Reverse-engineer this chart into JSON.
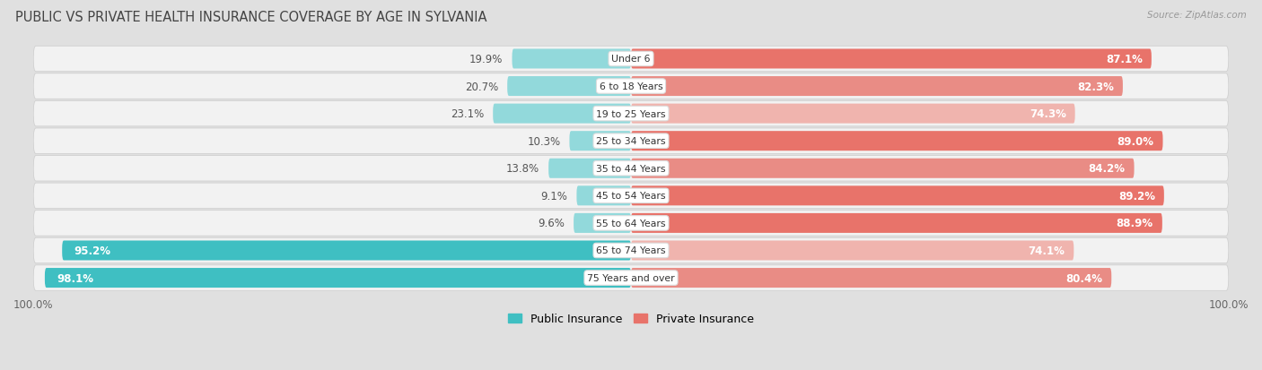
{
  "title": "PUBLIC VS PRIVATE HEALTH INSURANCE COVERAGE BY AGE IN SYLVANIA",
  "source": "Source: ZipAtlas.com",
  "categories": [
    "Under 6",
    "6 to 18 Years",
    "19 to 25 Years",
    "25 to 34 Years",
    "35 to 44 Years",
    "45 to 54 Years",
    "55 to 64 Years",
    "65 to 74 Years",
    "75 Years and over"
  ],
  "public_values": [
    19.9,
    20.7,
    23.1,
    10.3,
    13.8,
    9.1,
    9.6,
    95.2,
    98.1
  ],
  "private_values": [
    87.1,
    82.3,
    74.3,
    89.0,
    84.2,
    89.2,
    88.9,
    74.1,
    80.4
  ],
  "public_color_strong": "#3fbfc2",
  "public_color_light": "#92d9db",
  "private_color_strong": "#e8736a",
  "private_color_medium": "#e98c85",
  "private_color_light": "#f0b4ae",
  "row_bg": "#f2f2f2",
  "outer_bg": "#e8e8e8",
  "fig_bg": "#e0e0e0",
  "title_color": "#444444",
  "label_color_dark": "#555555",
  "label_fontsize": 8.5,
  "title_fontsize": 10.5,
  "max_value": 100.0,
  "legend_public": "Public Insurance",
  "legend_private": "Private Insurance",
  "public_threshold": 50,
  "private_strong_threshold": 85,
  "private_medium_threshold": 80
}
